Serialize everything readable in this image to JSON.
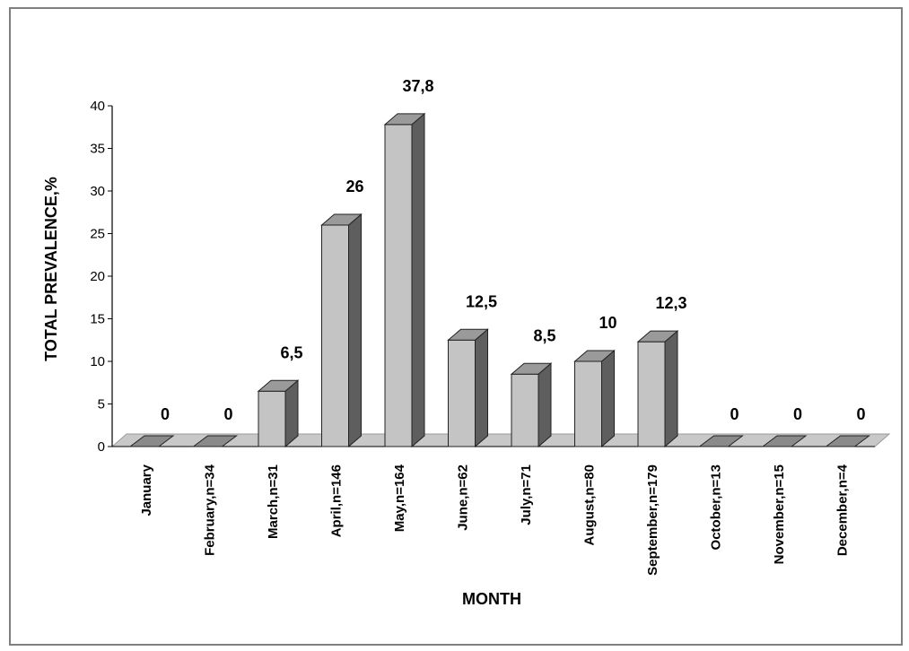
{
  "chart_data": {
    "type": "bar",
    "xlabel": "MONTH",
    "ylabel": "TOTAL PREVALENCE,%",
    "ylim": [
      0,
      40
    ],
    "yticks": [
      0,
      5,
      10,
      15,
      20,
      25,
      30,
      35,
      40
    ],
    "grid": false,
    "legend": "none",
    "style": "3d",
    "categories": [
      "January",
      "February,n=34",
      "March,n=31",
      "April,n=146",
      "May,n=164",
      "June,n=62",
      "July,n=71",
      "August,n=80",
      "September,n=179",
      "October,n=13",
      "November,n=15",
      "December,n=4"
    ],
    "values": [
      0,
      0,
      6.5,
      26,
      37.8,
      12.5,
      8.5,
      10,
      12.3,
      0,
      0,
      0
    ],
    "data_labels": [
      "0",
      "0",
      "6,5",
      "26",
      "37,8",
      "12,5",
      "8,5",
      "10",
      "12,3",
      "0",
      "0",
      "0"
    ],
    "colors": {
      "bar_front": "#c4c4c4",
      "bar_top": "#9a9a9a",
      "bar_side": "#5e5e5e",
      "floor": "#c8c8c8"
    }
  }
}
